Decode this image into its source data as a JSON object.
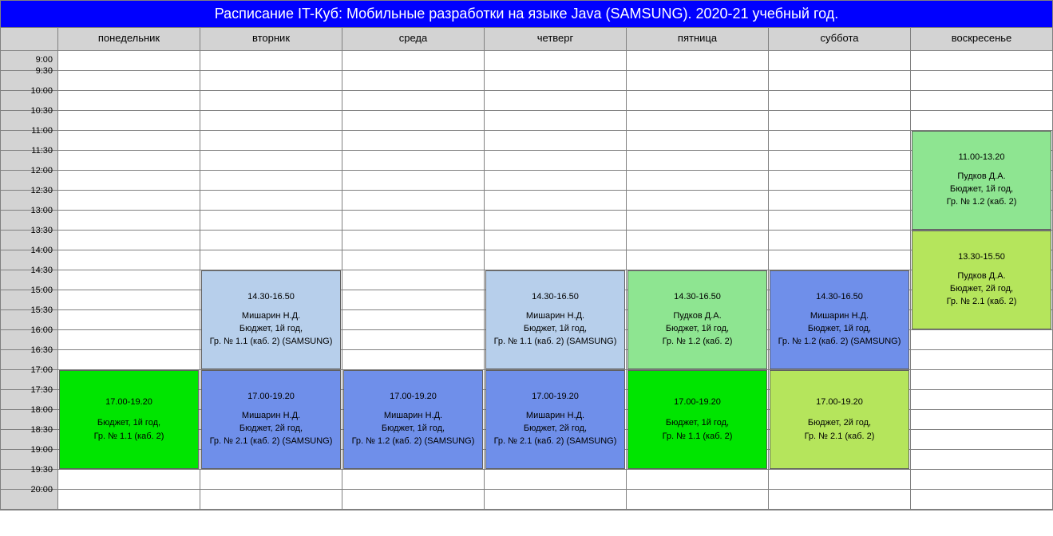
{
  "title": "Расписание IT-Куб: Мобильные разработки на языке Java (SAMSUNG). 2020-21 учебный год.",
  "days": [
    "понедельник",
    "вторник",
    "среда",
    "четверг",
    "пятница",
    "суббота",
    "воскресенье"
  ],
  "timeSlots": [
    "9:00",
    "9:30",
    "10:00",
    "10:30",
    "11:00",
    "11:30",
    "12:00",
    "12:30",
    "13:00",
    "13:30",
    "14:00",
    "14:30",
    "15:00",
    "15:30",
    "16:00",
    "16:30",
    "17:00",
    "17:30",
    "18:00",
    "18:30",
    "19:00",
    "19:30",
    "20:00"
  ],
  "slotHeight": 25,
  "colors": {
    "lightBlue": "#b7cfeb",
    "green": "#00e500",
    "blue": "#6f8fea",
    "lightGreen": "#8ee591",
    "yellowGreen": "#b5e55c"
  },
  "events": [
    {
      "day": 6,
      "startSlot": 4,
      "spanSlots": 5,
      "color": "#8ee591",
      "time": "11.00-13.20",
      "teacher": "Пудков Д.А.",
      "budget": "Бюджет, 1й год,",
      "group": "Гр. № 1.2 (каб. 2)"
    },
    {
      "day": 6,
      "startSlot": 9,
      "spanSlots": 5,
      "color": "#b5e55c",
      "time": "13.30-15.50",
      "teacher": "Пудков Д.А.",
      "budget": "Бюджет, 2й год,",
      "group": "Гр. № 2.1 (каб. 2)"
    },
    {
      "day": 1,
      "startSlot": 11,
      "spanSlots": 5,
      "color": "#b7cfeb",
      "time": "14.30-16.50",
      "teacher": "Мишарин Н.Д.",
      "budget": "Бюджет, 1й год,",
      "group": "Гр. № 1.1 (каб. 2) (SAMSUNG)"
    },
    {
      "day": 3,
      "startSlot": 11,
      "spanSlots": 5,
      "color": "#b7cfeb",
      "time": "14.30-16.50",
      "teacher": "Мишарин Н.Д.",
      "budget": "Бюджет, 1й год,",
      "group": "Гр. № 1.1 (каб. 2) (SAMSUNG)"
    },
    {
      "day": 4,
      "startSlot": 11,
      "spanSlots": 5,
      "color": "#8ee591",
      "time": "14.30-16.50",
      "teacher": "Пудков Д.А.",
      "budget": "Бюджет, 1й год,",
      "group": "Гр. № 1.2 (каб. 2)"
    },
    {
      "day": 5,
      "startSlot": 11,
      "spanSlots": 5,
      "color": "#6f8fea",
      "time": "14.30-16.50",
      "teacher": "Мишарин Н.Д.",
      "budget": "Бюджет, 1й год,",
      "group": "Гр. № 1.2 (каб. 2) (SAMSUNG)"
    },
    {
      "day": 0,
      "startSlot": 16,
      "spanSlots": 5,
      "color": "#00e500",
      "time": "17.00-19.20",
      "teacher": "_",
      "budget": "Бюджет, 1й год,",
      "group": "Гр. № 1.1 (каб. 2)"
    },
    {
      "day": 1,
      "startSlot": 16,
      "spanSlots": 5,
      "color": "#6f8fea",
      "time": "17.00-19.20",
      "teacher": "Мишарин Н.Д.",
      "budget": "Бюджет, 2й год,",
      "group": "Гр. № 2.1 (каб. 2) (SAMSUNG)"
    },
    {
      "day": 2,
      "startSlot": 16,
      "spanSlots": 5,
      "color": "#6f8fea",
      "time": "17.00-19.20",
      "teacher": "Мишарин Н.Д.",
      "budget": "Бюджет, 1й год,",
      "group": "Гр. № 1.2 (каб. 2) (SAMSUNG)"
    },
    {
      "day": 3,
      "startSlot": 16,
      "spanSlots": 5,
      "color": "#6f8fea",
      "time": "17.00-19.20",
      "teacher": "Мишарин Н.Д.",
      "budget": "Бюджет, 2й год,",
      "group": "Гр. № 2.1 (каб. 2) (SAMSUNG)"
    },
    {
      "day": 4,
      "startSlot": 16,
      "spanSlots": 5,
      "color": "#00e500",
      "time": "17.00-19.20",
      "teacher": "_",
      "budget": "Бюджет, 1й год,",
      "group": "Гр. № 1.1 (каб. 2)"
    },
    {
      "day": 5,
      "startSlot": 16,
      "spanSlots": 5,
      "color": "#b5e55c",
      "time": "17.00-19.20",
      "teacher": "_",
      "budget": "Бюджет, 2й год,",
      "group": "Гр. № 2.1 (каб. 2)"
    }
  ]
}
